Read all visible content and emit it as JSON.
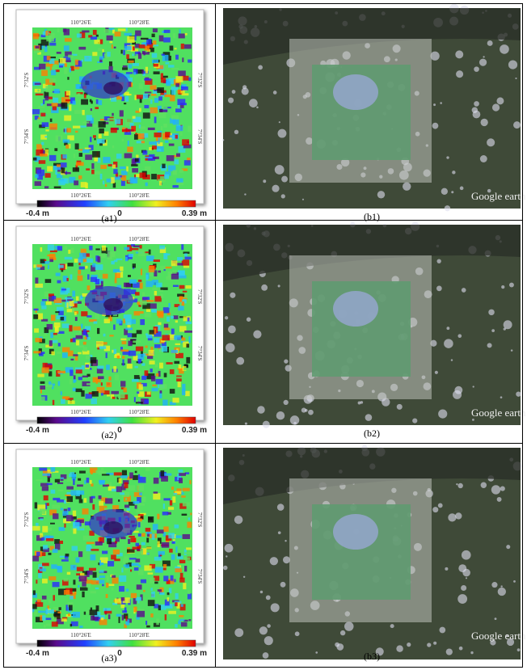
{
  "figure": {
    "rows": [
      {
        "map": {
          "lon_top": [
            "110°26'E",
            "110°28'E"
          ],
          "lon_bottom": [
            "110°26'E",
            "110°28'E"
          ],
          "lat_left": [
            "7°32'S",
            "7°34'S"
          ],
          "lat_right": [
            "7°32'S",
            "7°34'S"
          ],
          "colorbar": [
            "-0.4 m",
            "0",
            "0.39 m"
          ],
          "caption": "(a1)"
        },
        "photo": {
          "watermark": "Google earth",
          "caption": "(b1)"
        }
      },
      {
        "map": {
          "lon_top": [
            "110°26'E",
            "110°28'E"
          ],
          "lon_bottom": [
            "110°26'E",
            "110°28'E"
          ],
          "lat_left": [
            "7°32'S",
            "7°34'S"
          ],
          "lat_right": [
            "7°32'S",
            "7°34'S"
          ],
          "colorbar": [
            "-0.4 m",
            "0",
            "0.39 m"
          ],
          "caption": "(a2)"
        },
        "photo": {
          "watermark": "Google earth",
          "caption": "(b2)"
        }
      },
      {
        "map": {
          "lon_top": [
            "110°26'E",
            "110°28'E"
          ],
          "lon_bottom": [
            "110°26'E",
            "110°28'E"
          ],
          "lat_left": [
            "7°32'S",
            "7°34'S"
          ],
          "lat_right": [
            "7°32'S",
            "7°34'S"
          ],
          "colorbar": [
            "-0.4 m",
            "0",
            "0.39 m"
          ],
          "caption": "(a3)"
        },
        "photo": {
          "watermark": "Google earth",
          "caption": "(b3)"
        }
      }
    ]
  }
}
